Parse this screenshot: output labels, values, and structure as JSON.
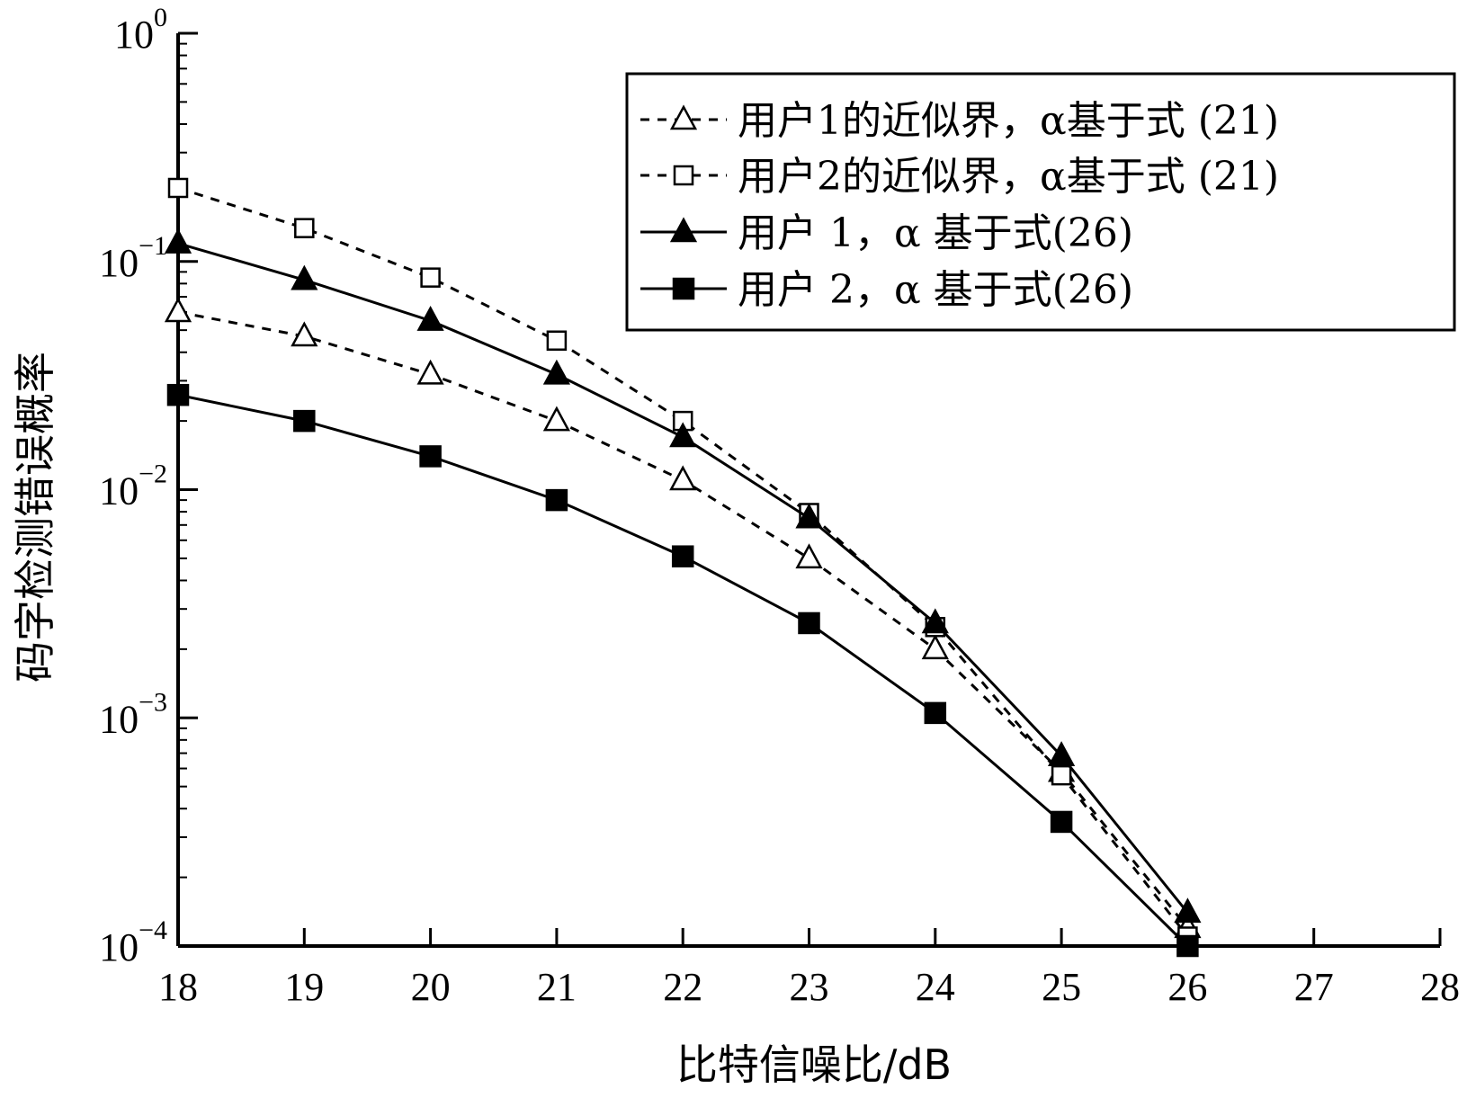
{
  "chart_data": {
    "type": "line",
    "title": "",
    "xlabel": "比特信噪比/dB",
    "ylabel": "码字检测错误概率",
    "x_ticks": [
      "18",
      "19",
      "20",
      "21",
      "22",
      "23",
      "24",
      "25",
      "26",
      "27",
      "28"
    ],
    "y_ticks": [
      {
        "base": "10",
        "exp": "0",
        "value": 1
      },
      {
        "base": "10",
        "exp": "−1",
        "value": 0.1
      },
      {
        "base": "10",
        "exp": "−2",
        "value": 0.01
      },
      {
        "base": "10",
        "exp": "−3",
        "value": 0.001
      },
      {
        "base": "10",
        "exp": "−4",
        "value": 0.0001
      }
    ],
    "xlim": [
      18,
      28
    ],
    "ylim": [
      0.0001,
      1
    ],
    "y_scale": "log",
    "grid": false,
    "legend_position": "top-right",
    "series": [
      {
        "name": "用户1的近似界，α基于式 (21)",
        "line_style": "dashed",
        "marker": "triangle-open",
        "x": [
          18,
          19,
          20,
          21,
          22,
          23,
          24,
          25,
          26
        ],
        "y": [
          0.06,
          0.047,
          0.032,
          0.02,
          0.011,
          0.005,
          0.002,
          0.00058,
          0.00012
        ]
      },
      {
        "name": "用户2的近似界，α基于式 (21)",
        "line_style": "dashed",
        "marker": "square-open",
        "x": [
          18,
          19,
          20,
          21,
          22,
          23,
          24,
          25,
          26
        ],
        "y": [
          0.21,
          0.14,
          0.085,
          0.045,
          0.02,
          0.0079,
          0.0025,
          0.00056,
          0.00011
        ]
      },
      {
        "name": "用户 1，α 基于式(26)",
        "line_style": "solid",
        "marker": "triangle-filled",
        "x": [
          18,
          19,
          20,
          21,
          22,
          23,
          24,
          25,
          26
        ],
        "y": [
          0.12,
          0.083,
          0.055,
          0.032,
          0.017,
          0.0075,
          0.0026,
          0.00068,
          0.00014
        ]
      },
      {
        "name": "用户 2，α 基于式(26)",
        "line_style": "solid",
        "marker": "square-filled",
        "x": [
          18,
          19,
          20,
          21,
          22,
          23,
          24,
          25,
          26
        ],
        "y": [
          0.026,
          0.02,
          0.014,
          0.009,
          0.0051,
          0.0026,
          0.00105,
          0.00035,
          0.0001
        ]
      }
    ],
    "colors": {
      "line": "#000000",
      "background": "#ffffff"
    }
  }
}
